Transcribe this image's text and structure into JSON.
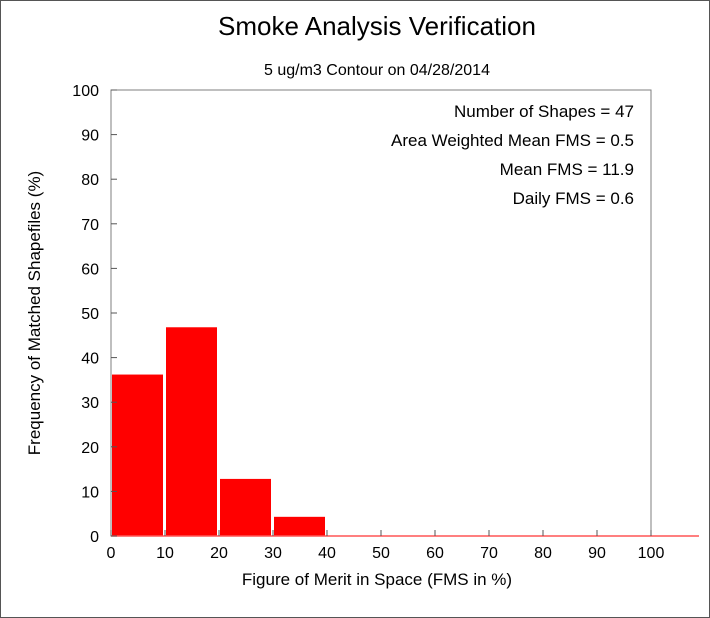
{
  "chart_data": {
    "type": "bar",
    "title": "Smoke Analysis Verification",
    "subtitle": "5 ug/m3 Contour on 04/28/2014",
    "xlabel": "Figure of Merit in Space (FMS in %)",
    "ylabel": "Frequency of Matched Shapefiles (%)",
    "xlim": [
      0,
      100
    ],
    "ylim": [
      0,
      100
    ],
    "bin_width": 10,
    "xticks": [
      0,
      10,
      20,
      30,
      40,
      50,
      60,
      70,
      80,
      90,
      100
    ],
    "yticks": [
      0,
      10,
      20,
      30,
      40,
      50,
      60,
      70,
      80,
      90,
      100
    ],
    "bins": [
      0,
      10,
      20,
      30,
      40,
      50,
      60,
      70,
      80,
      90,
      100
    ],
    "values": [
      36.2,
      46.8,
      12.8,
      4.3,
      0,
      0,
      0,
      0,
      0,
      0,
      0
    ],
    "bar_color": "#ff0000",
    "grid": false,
    "annotations": [
      "Number of Shapes = 47",
      "Area Weighted Mean FMS = 0.5",
      "Mean FMS = 11.9",
      "Daily FMS = 0.6"
    ]
  }
}
